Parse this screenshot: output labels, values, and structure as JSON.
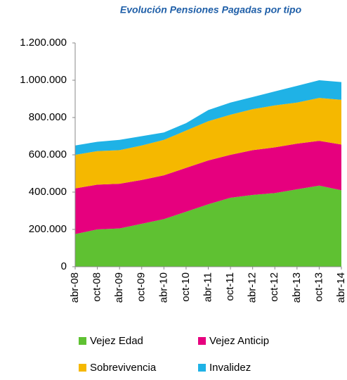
{
  "chart_data": {
    "type": "stacked_area",
    "title": "Evolución Pensiones Pagadas por tipo",
    "categories": [
      "abr-08",
      "oct-08",
      "abr-09",
      "oct-09",
      "abr-10",
      "oct-10",
      "abr-11",
      "oct-11",
      "abr-12",
      "oct-12",
      "abr-13",
      "oct-13",
      "abr-14"
    ],
    "series": [
      {
        "name": "Vejez Edad",
        "color": "#5fc132",
        "values": [
          175000,
          200000,
          205000,
          230000,
          255000,
          295000,
          335000,
          370000,
          385000,
          395000,
          415000,
          435000,
          410000
        ]
      },
      {
        "name": "Vejez Anticip",
        "color": "#e6007e",
        "values": [
          245000,
          240000,
          240000,
          235000,
          235000,
          235000,
          235000,
          230000,
          240000,
          245000,
          245000,
          240000,
          245000
        ]
      },
      {
        "name": "Sobrevivencia",
        "color": "#f5b800",
        "values": [
          180000,
          180000,
          180000,
          185000,
          190000,
          200000,
          210000,
          215000,
          220000,
          225000,
          220000,
          230000,
          240000
        ]
      },
      {
        "name": "Invalidez",
        "color": "#1fb2e6",
        "values": [
          50000,
          50000,
          55000,
          50000,
          40000,
          40000,
          60000,
          65000,
          65000,
          75000,
          90000,
          95000,
          95000
        ]
      }
    ],
    "ylim": [
      0,
      1200000
    ],
    "yticks": [
      0,
      {
        "value": 200000,
        "label": "200.000"
      },
      {
        "value": 400000,
        "label": "400.000"
      },
      {
        "value": 600000,
        "label": "600.000"
      },
      {
        "value": 800000,
        "label": "800.000"
      },
      {
        "value": 1000000,
        "label": "1.000.000"
      },
      {
        "value": 1200000,
        "label": "1.200.000"
      }
    ],
    "legend": "bottom"
  }
}
